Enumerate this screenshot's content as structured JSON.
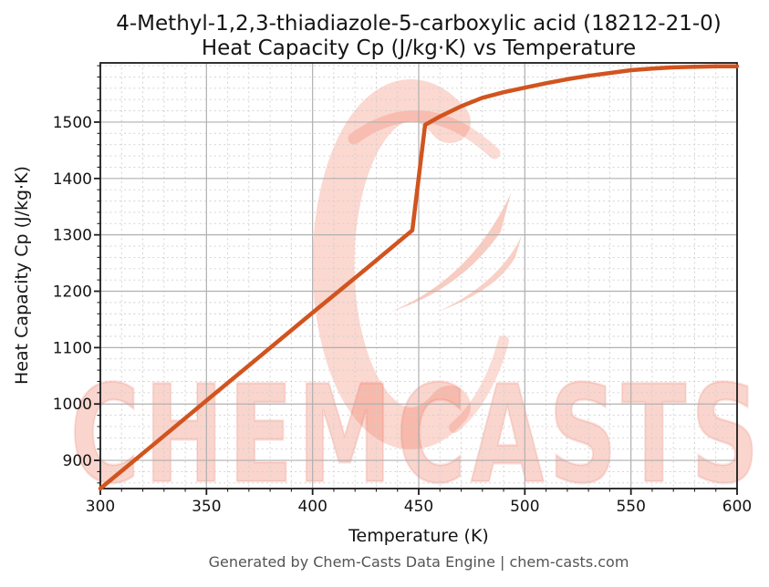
{
  "title": {
    "line1": "4-Methyl-1,2,3-thiadiazole-5-carboxylic acid (18212-21-0)",
    "line2": "Heat Capacity Cp (J/kg·K) vs Temperature"
  },
  "footer": {
    "text": "Generated by Chem-Casts Data Engine | chem-casts.com"
  },
  "watermark": {
    "text": "CHEMCASTS",
    "logo": "chemcasts-swirl-logo"
  },
  "colors": {
    "line": "#d1541f",
    "major_grid": "#b0b0b0",
    "minor_grid": "#cfcfcf",
    "spine": "#1c1c1c",
    "title_text": "#141414",
    "footer_text": "#545454",
    "watermark_pink": "rgba(238,104,74,0.28)",
    "watermark_accent": "rgba(240,120,92,0.38)"
  },
  "chart_data": {
    "type": "line",
    "title": "4-Methyl-1,2,3-thiadiazole-5-carboxylic acid (18212-21-0) — Heat Capacity Cp (J/kg·K) vs Temperature",
    "xlabel": "Temperature (K)",
    "ylabel": "Heat Capacity Cp (J/kg·K)",
    "xlim": [
      300,
      600
    ],
    "ylim": [
      850,
      1605
    ],
    "x_major_ticks": [
      300,
      350,
      400,
      450,
      500,
      550,
      600
    ],
    "x_minor_step": 10,
    "y_major_ticks": [
      900,
      1000,
      1100,
      1200,
      1300,
      1400,
      1500
    ],
    "y_minor_step": 20,
    "grid": {
      "major": "solid",
      "minor": "dashed"
    },
    "legend": "none",
    "series": [
      {
        "name": "Heat Capacity Cp (J/kg·K)",
        "color": "#d1541f",
        "line_width": 4.5,
        "points": [
          [
            300,
            850
          ],
          [
            325,
            928
          ],
          [
            350,
            1006
          ],
          [
            375,
            1084
          ],
          [
            400,
            1162
          ],
          [
            425,
            1239
          ],
          [
            447,
            1308
          ],
          [
            453,
            1495
          ],
          [
            460,
            1510
          ],
          [
            470,
            1528
          ],
          [
            480,
            1543
          ],
          [
            490,
            1553
          ],
          [
            500,
            1561
          ],
          [
            510,
            1569
          ],
          [
            520,
            1576
          ],
          [
            530,
            1582
          ],
          [
            540,
            1587
          ],
          [
            550,
            1592
          ],
          [
            560,
            1595
          ],
          [
            570,
            1597
          ],
          [
            580,
            1598
          ],
          [
            590,
            1599
          ],
          [
            600,
            1599
          ]
        ]
      }
    ]
  }
}
